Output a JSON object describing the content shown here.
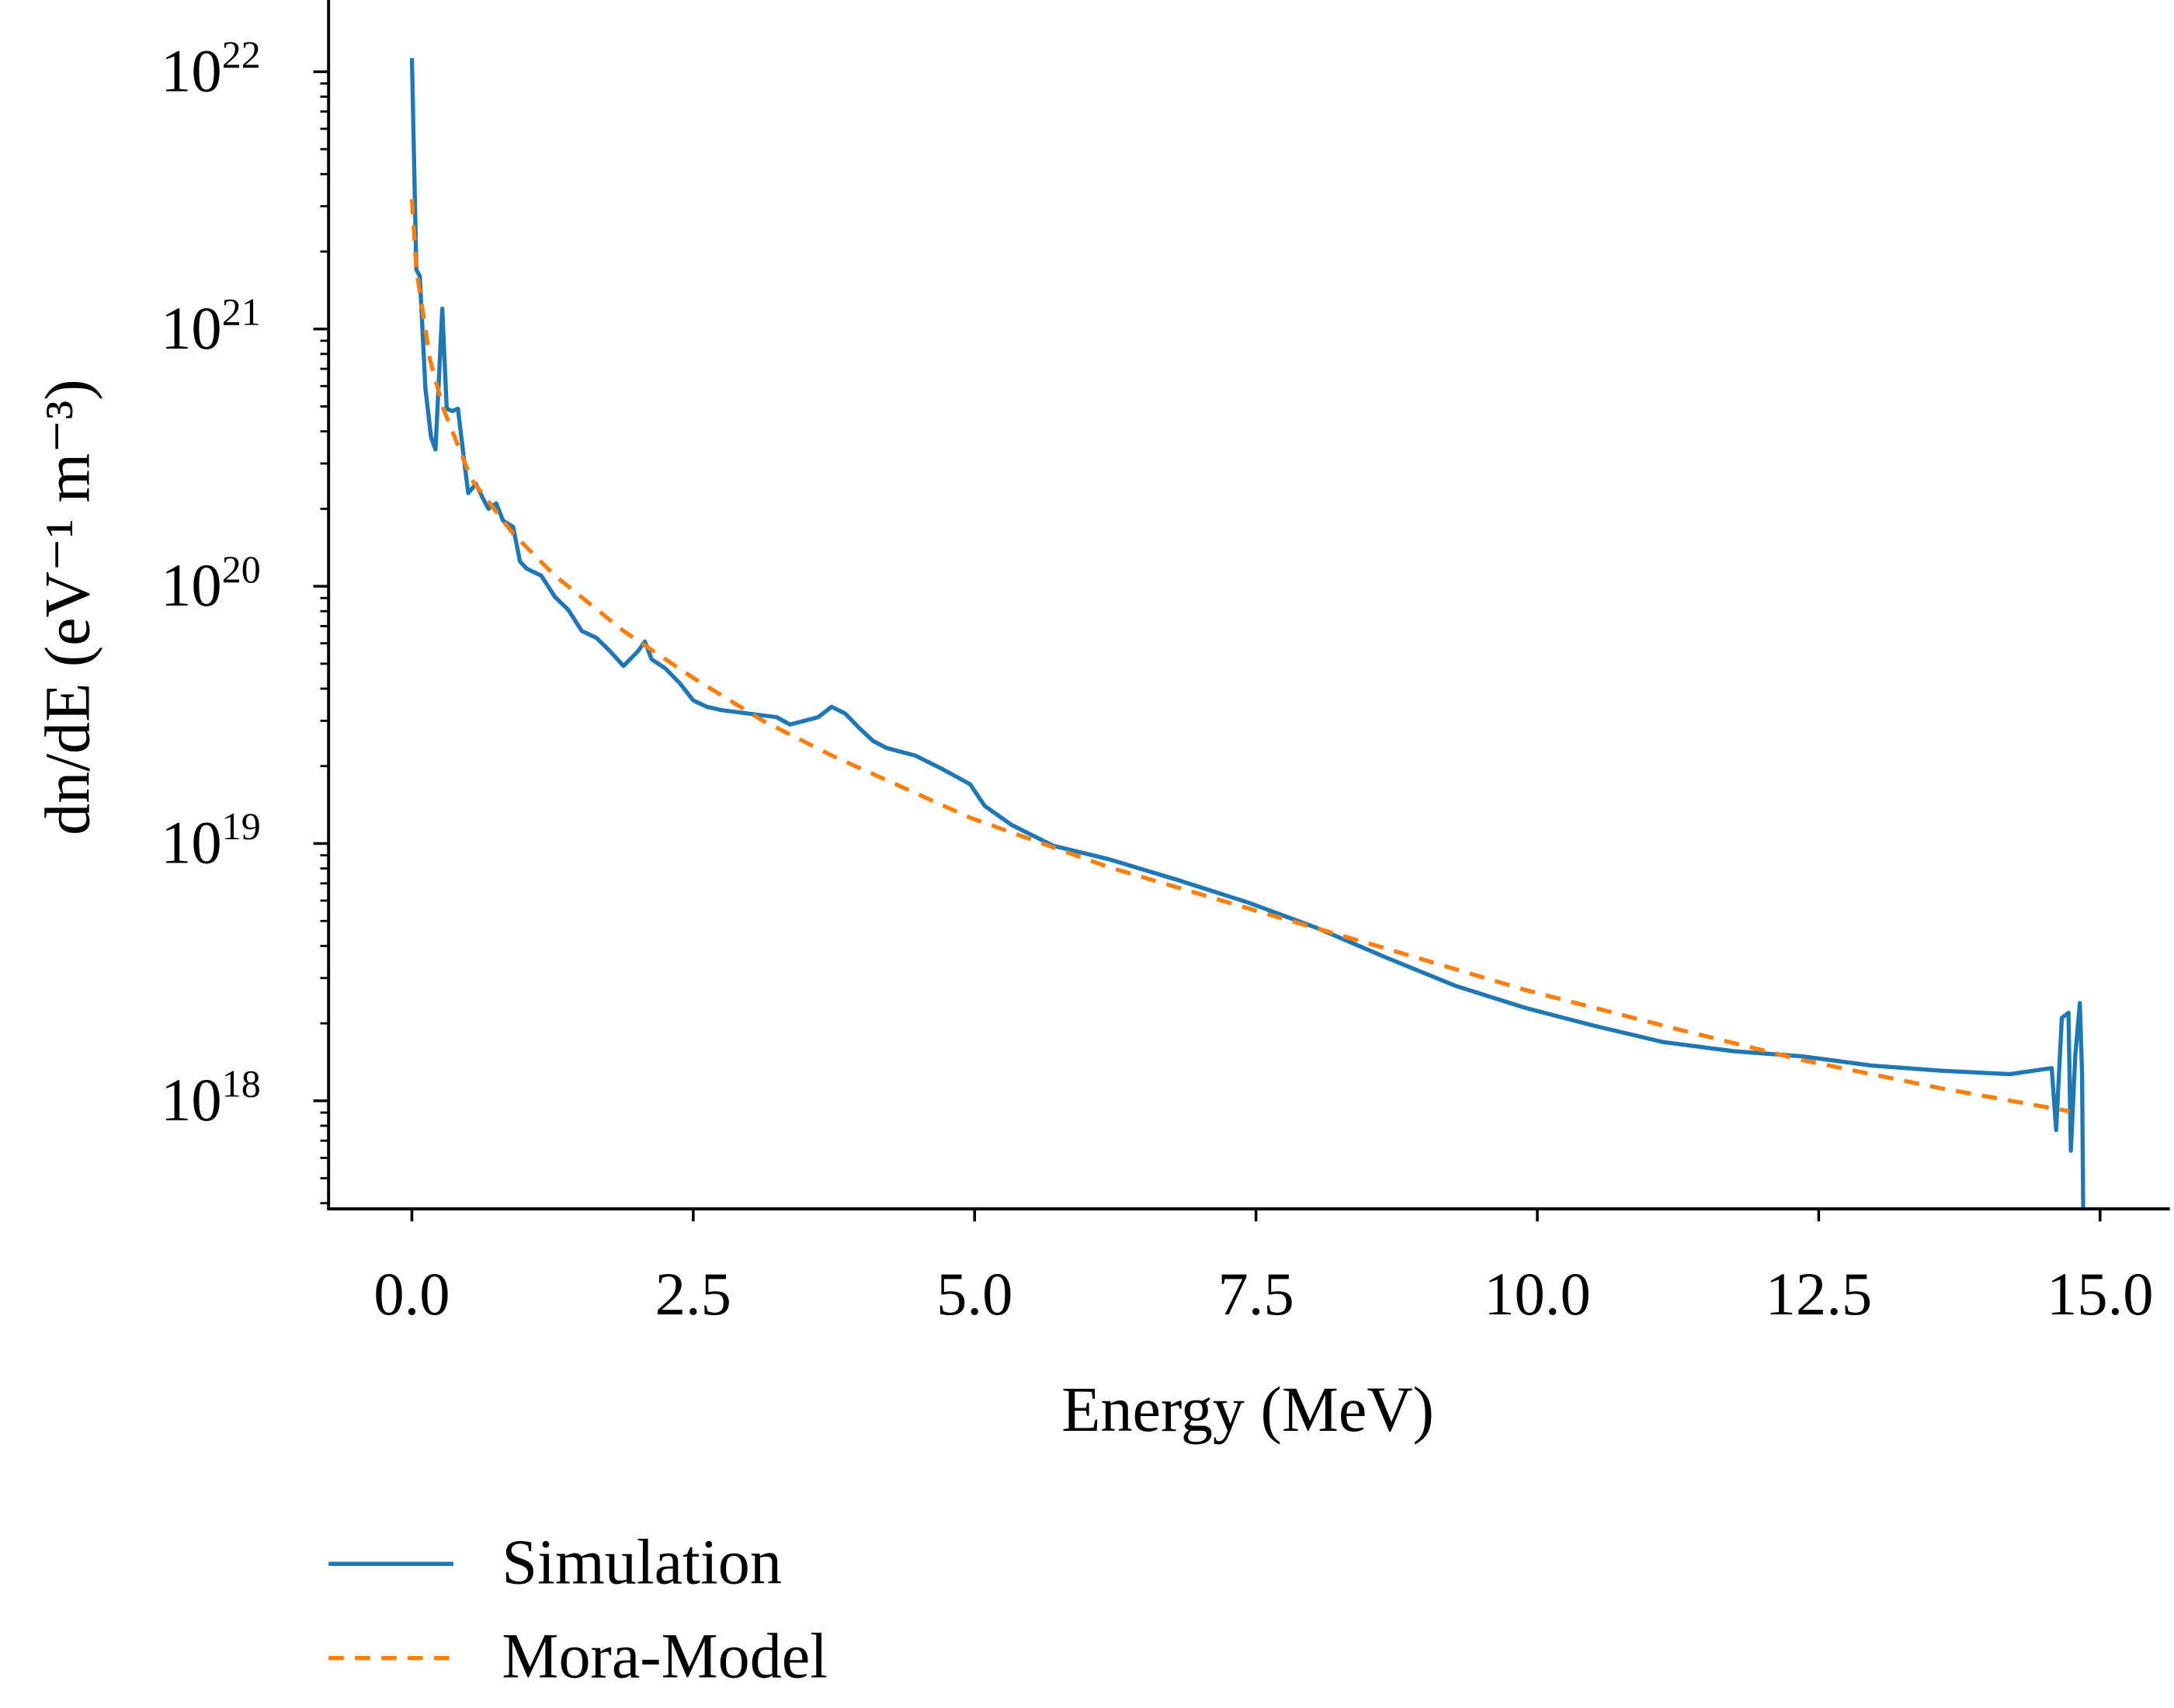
{
  "chart_data": {
    "type": "line",
    "title": "",
    "xlabel": "Energy (MeV)",
    "ylabel": "dn/dE (eV⁻¹ m⁻³)",
    "xlim": [
      -0.74,
      15.62
    ],
    "ylim": [
      3.8e+17,
      1.9e+22
    ],
    "yscale": "log",
    "grid": false,
    "legend_placement": "bottom-left, below plot",
    "xticks": [
      {
        "value": 0.0,
        "label": "0.0"
      },
      {
        "value": 2.5,
        "label": "2.5"
      },
      {
        "value": 5.0,
        "label": "5.0"
      },
      {
        "value": 7.5,
        "label": "7.5"
      },
      {
        "value": 10.0,
        "label": "10.0"
      },
      {
        "value": 12.5,
        "label": "12.5"
      },
      {
        "value": 15.0,
        "label": "15.0"
      }
    ],
    "yticks": [
      {
        "value": 1e+18,
        "base": "10",
        "exp": "18"
      },
      {
        "value": 1e+19,
        "base": "10",
        "exp": "19"
      },
      {
        "value": 1e+20,
        "base": "10",
        "exp": "20"
      },
      {
        "value": 1e+21,
        "base": "10",
        "exp": "21"
      },
      {
        "value": 1e+22,
        "base": "10",
        "exp": "22"
      }
    ],
    "series": [
      {
        "name": "Simulation",
        "color": "#1f77b4",
        "style": "solid",
        "x": [
          0.0,
          0.04,
          0.07,
          0.12,
          0.17,
          0.21,
          0.27,
          0.31,
          0.36,
          0.41,
          0.46,
          0.5,
          0.57,
          0.63,
          0.68,
          0.75,
          0.81,
          0.9,
          0.96,
          1.02,
          1.15,
          1.27,
          1.39,
          1.51,
          1.64,
          1.76,
          1.88,
          2.01,
          2.07,
          2.13,
          2.25,
          2.38,
          2.5,
          2.62,
          2.75,
          2.99,
          3.24,
          3.36,
          3.49,
          3.61,
          3.73,
          3.85,
          3.98,
          4.1,
          4.22,
          4.47,
          4.72,
          4.96,
          5.09,
          5.33,
          5.7,
          6.19,
          6.81,
          7.43,
          8.04,
          8.66,
          9.27,
          9.89,
          10.5,
          11.12,
          11.74,
          12.35,
          12.97,
          13.58,
          14.2,
          14.57,
          14.61,
          14.66,
          14.72,
          14.74,
          14.78,
          14.82,
          14.84,
          14.85
        ],
        "y": [
          1.13e+22,
          1.7e+21,
          1.6e+21,
          5.9e+20,
          3.8e+20,
          3.4e+20,
          1.2e+21,
          4.9e+20,
          4.8e+20,
          4.9e+20,
          3.2e+20,
          2.3e+20,
          2.5e+20,
          2.2e+20,
          2e+20,
          2.1e+20,
          1.8e+20,
          1.7e+20,
          1.25e+20,
          1.17e+20,
          1.1e+20,
          9.1e+19,
          8.1e+19,
          6.7e+19,
          6.3e+19,
          5.6e+19,
          4.9e+19,
          5.6e+19,
          6.1e+19,
          5.2e+19,
          4.8e+19,
          4.2e+19,
          3.6e+19,
          3.4e+19,
          3.3e+19,
          3.2e+19,
          3.1e+19,
          2.9e+19,
          3e+19,
          3.1e+19,
          3.4e+19,
          3.2e+19,
          2.8e+19,
          2.5e+19,
          2.35e+19,
          2.2e+19,
          1.94e+19,
          1.7e+19,
          1.4e+19,
          1.18e+19,
          9.8e+18,
          8.7e+18,
          7.2e+18,
          5.9e+18,
          4.7e+18,
          3.6e+18,
          2.8e+18,
          2.3e+18,
          1.96e+18,
          1.69e+18,
          1.56e+18,
          1.49e+18,
          1.37e+18,
          1.31e+18,
          1.27e+18,
          1.34e+18,
          7.7e+17,
          2.1e+18,
          2.2e+18,
          6.4e+17,
          1.5e+18,
          2.4e+18,
          1.27e+18,
          3.8e+17
        ]
      },
      {
        "name": "Mora-Model",
        "color": "#ff7f0e",
        "style": "dashed",
        "x": [
          0.0,
          0.04,
          0.16,
          0.28,
          0.53,
          0.9,
          1.27,
          1.88,
          2.5,
          3.12,
          3.73,
          4.96,
          6.19,
          7.43,
          8.66,
          9.89,
          11.12,
          12.35,
          13.58,
          14.73
        ],
        "y": [
          3.2e+21,
          1.7e+21,
          7.6e+20,
          4.9e+20,
          2.6e+20,
          1.6e+20,
          1.1e+20,
          6.7e+19,
          4.4e+19,
          3e+19,
          2.2e+19,
          1.26e+19,
          8.1e+18,
          5.6e+18,
          3.9e+18,
          2.7e+18,
          1.96e+18,
          1.44e+18,
          1.12e+18,
          9.1e+17
        ]
      }
    ]
  }
}
